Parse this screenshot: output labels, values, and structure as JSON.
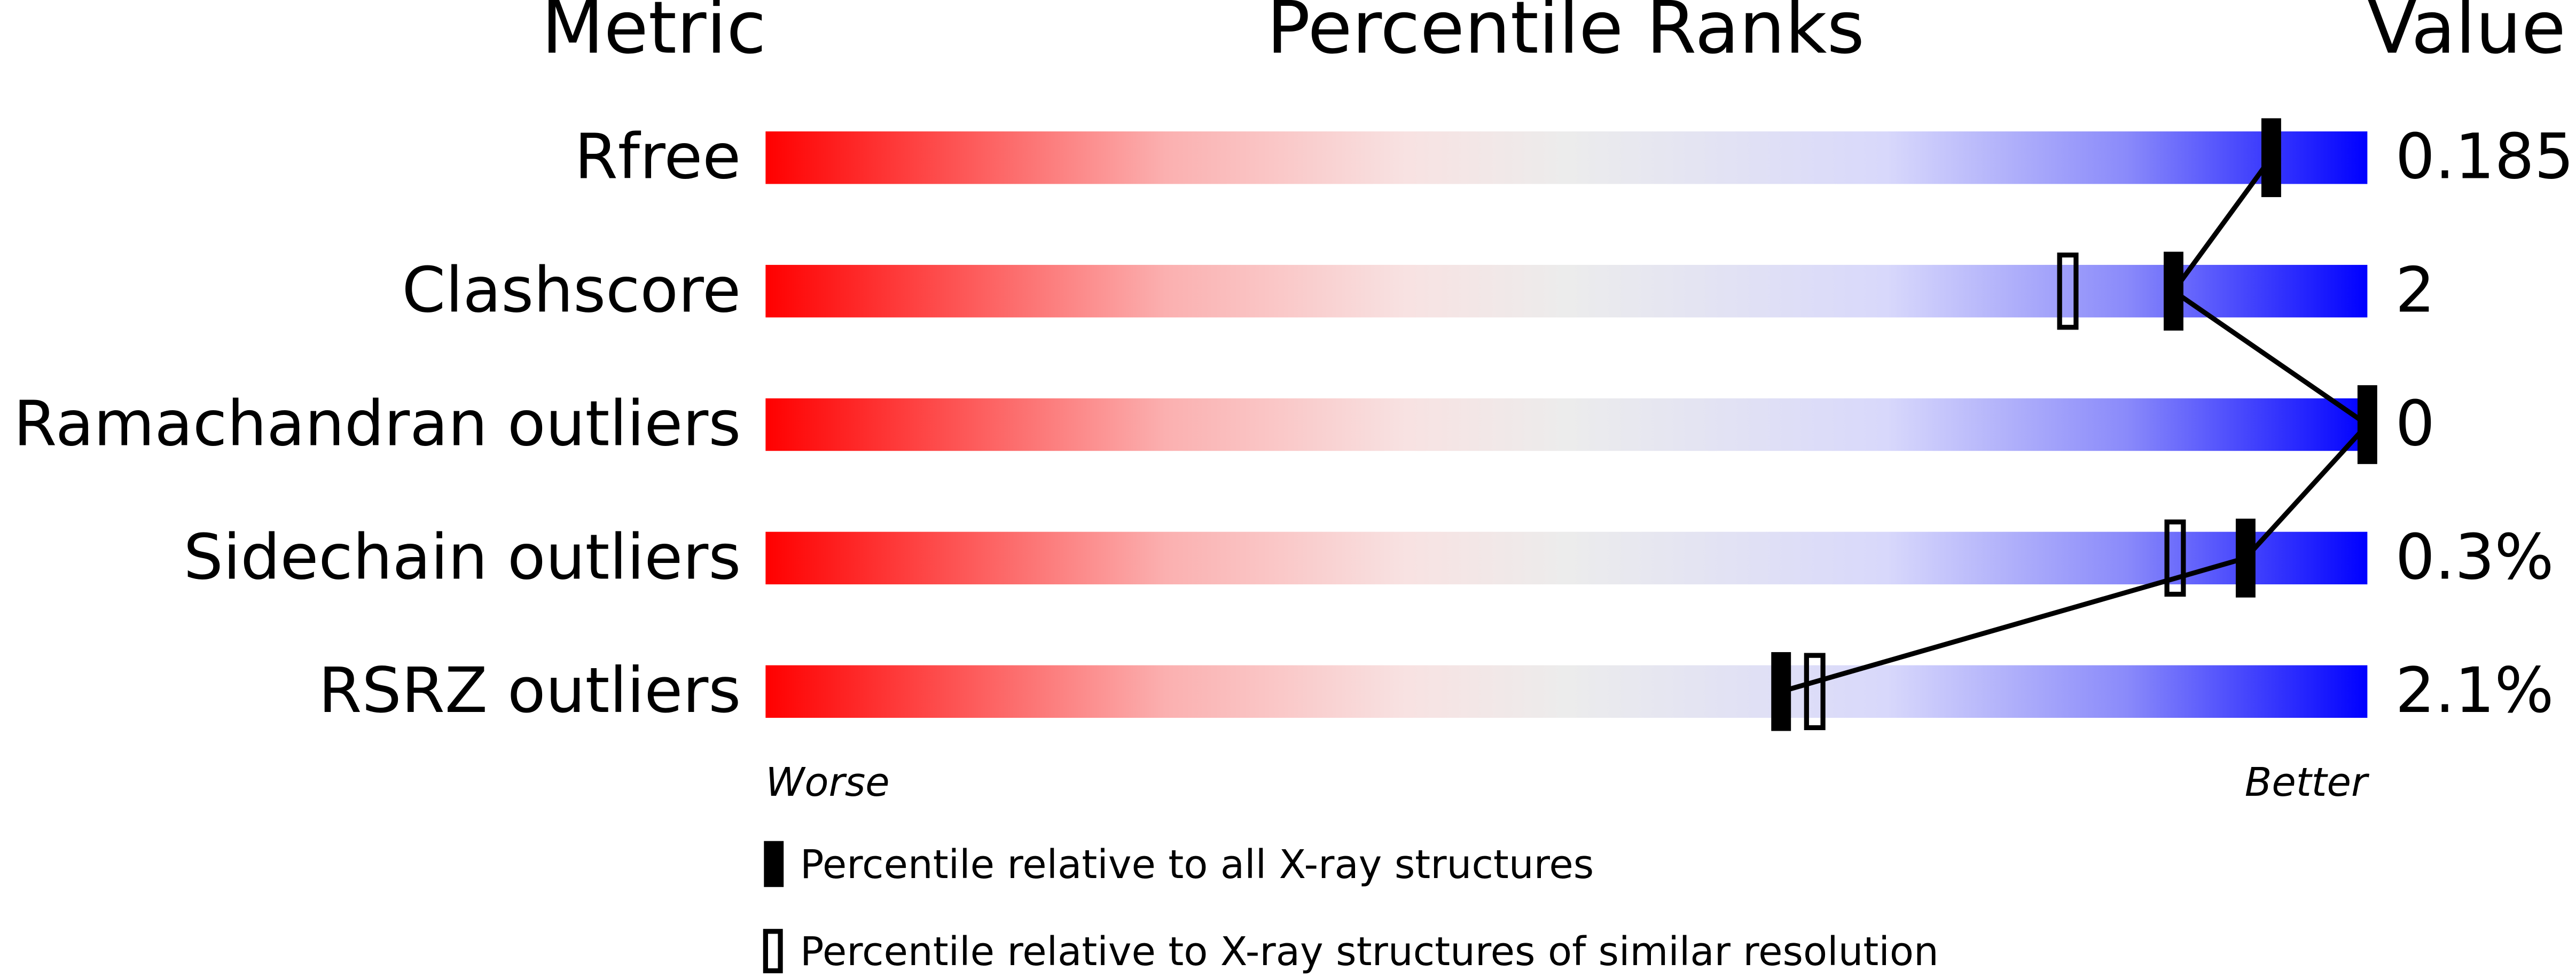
{
  "chart_data": {
    "type": "percentile-slider",
    "headers": [
      "Metric",
      "Percentile Ranks",
      "Value"
    ],
    "categories": [
      "Rfree",
      "Clashscore",
      "Ramachandran outliers",
      "Sidechain outliers",
      "RSRZ outliers"
    ],
    "metric_values": [
      "0.185",
      "2",
      "0",
      "0.3%",
      "2.1%"
    ],
    "xlim": [
      0,
      100
    ],
    "axis_labels": [
      "Worse",
      "Better"
    ],
    "series": [
      {
        "name": "Percentile relative to all X-ray structures",
        "color": "#000000",
        "style": "filled",
        "values": [
          94.0,
          87.9,
          100,
          92.4,
          63.4
        ]
      },
      {
        "name": "Percentile relative to X-ray structures of similar resolution",
        "color": "#000000",
        "style": "open",
        "values": [
          null,
          81.3,
          null,
          88.0,
          65.5
        ]
      }
    ]
  }
}
